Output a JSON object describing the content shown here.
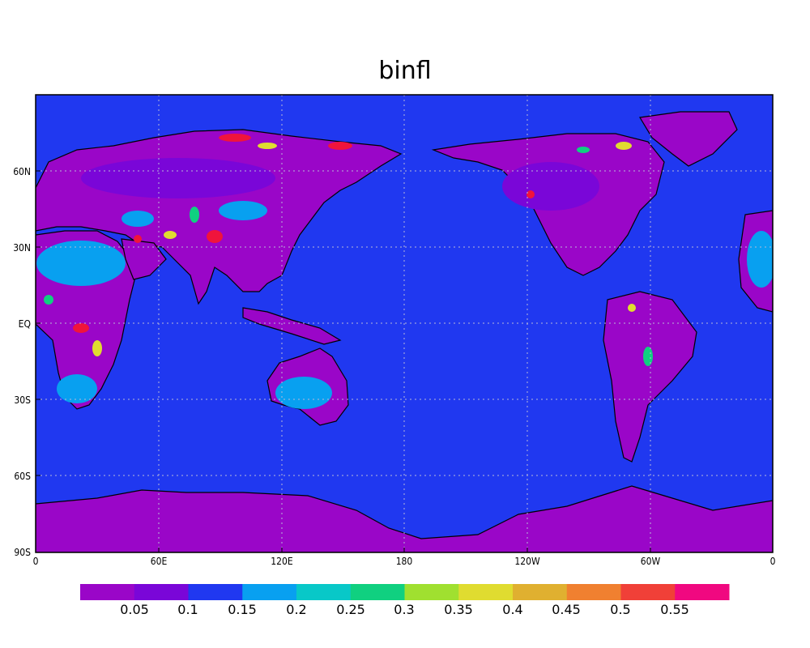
{
  "title": "binfl",
  "colors": {
    "ocean": "#2038f0",
    "purple": "#9a06c8",
    "violet": "#7a06d8",
    "light_blue": "#08a0f0",
    "red": "#f0143c",
    "yellow": "#e0dc30",
    "green": "#10d080",
    "coast": "#000000"
  },
  "map": {
    "lon_ticks": [
      "0",
      "60E",
      "120E",
      "180",
      "120W",
      "60W",
      "0"
    ],
    "lat_ticks": [
      "60N",
      "30N",
      "EQ",
      "30S",
      "60S",
      "90S"
    ],
    "grid_lines": true
  },
  "colorbar": {
    "colors": [
      "#9a06c8",
      "#7a06d8",
      "#2038f0",
      "#08a0f0",
      "#08c8c8",
      "#10d080",
      "#a0e030",
      "#e0dc30",
      "#e0b030",
      "#f08030",
      "#f04038",
      "#f00880"
    ],
    "labels": [
      "0.05",
      "0.1",
      "0.15",
      "0.2",
      "0.25",
      "0.3",
      "0.35",
      "0.4",
      "0.45",
      "0.5",
      "0.55"
    ]
  }
}
